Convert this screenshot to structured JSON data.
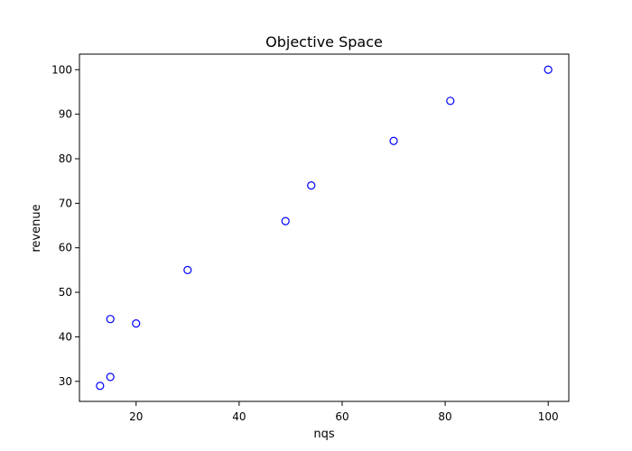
{
  "chart_data": {
    "type": "scatter",
    "title": "Objective Space",
    "xlabel": "nqs",
    "ylabel": "revenue",
    "xlim": [
      9,
      104
    ],
    "ylim": [
      25.5,
      103.5
    ],
    "xticks": [
      20,
      40,
      60,
      80,
      100
    ],
    "yticks": [
      30,
      40,
      50,
      60,
      70,
      80,
      90,
      100
    ],
    "grid": false,
    "marker_color": "#0000ff",
    "series": [
      {
        "points": [
          {
            "x": 13,
            "y": 29
          },
          {
            "x": 15,
            "y": 31
          },
          {
            "x": 15,
            "y": 44
          },
          {
            "x": 20,
            "y": 43
          },
          {
            "x": 30,
            "y": 55
          },
          {
            "x": 49,
            "y": 66
          },
          {
            "x": 54,
            "y": 74
          },
          {
            "x": 70,
            "y": 84
          },
          {
            "x": 81,
            "y": 93
          },
          {
            "x": 100,
            "y": 100
          }
        ]
      }
    ]
  }
}
